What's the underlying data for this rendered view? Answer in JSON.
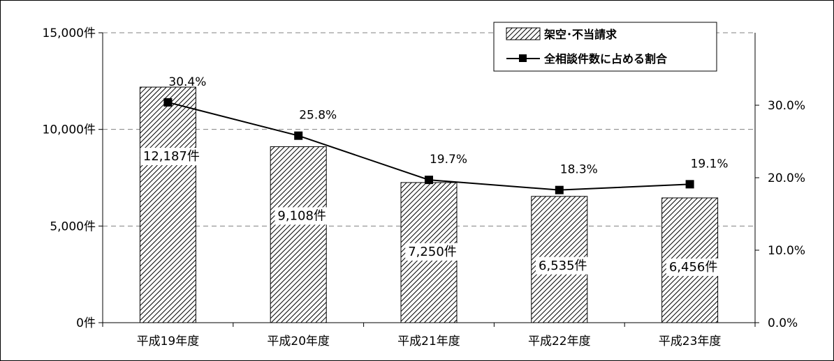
{
  "chart_data": {
    "type": "bar",
    "categories": [
      "平成19年度",
      "平成20年度",
      "平成21年度",
      "平成22年度",
      "平成23年度"
    ],
    "series": [
      {
        "name": "架空･不当請求",
        "type": "bar",
        "axis": "left",
        "values": [
          12187,
          9108,
          7250,
          6535,
          6456
        ],
        "labels": [
          "12,187件",
          "9,108件",
          "7,250件",
          "6,535件",
          "6,456件"
        ],
        "pattern": "diagonal-hatch"
      },
      {
        "name": "全相談件数に占める割合",
        "type": "line",
        "axis": "right",
        "values": [
          30.4,
          25.8,
          19.7,
          18.3,
          19.1
        ],
        "labels": [
          "30.4%",
          "25.8%",
          "19.7%",
          "18.3%",
          "19.1%"
        ],
        "marker": "square"
      }
    ],
    "y_left": {
      "range": [
        0,
        15000
      ],
      "ticks": [
        0,
        5000,
        10000,
        15000
      ],
      "tick_labels": [
        "0件",
        "5,000件",
        "10,000件",
        "15,000件"
      ]
    },
    "y_right": {
      "range": [
        0,
        40
      ],
      "ticks": [
        0,
        10,
        20,
        30
      ],
      "tick_labels": [
        "0.0%",
        "10.0%",
        "20.0%",
        "30.0%"
      ]
    },
    "title": "",
    "xlabel": "",
    "ylabel": "",
    "grid": "horizontal-dashed",
    "legend_position": "top-right",
    "colors": {
      "bar_fill": "#ffffff",
      "bar_hatch": "#000000",
      "line": "#000000",
      "grid": "#808080"
    }
  }
}
